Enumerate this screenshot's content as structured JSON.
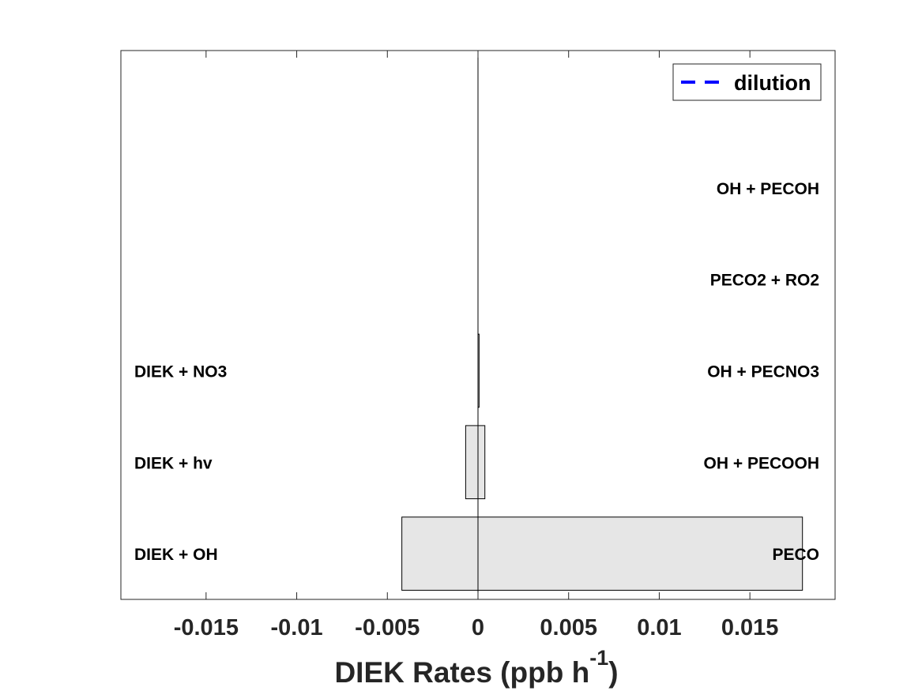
{
  "chart_data": {
    "type": "bar",
    "orientation": "horizontal",
    "stacked": true,
    "xlabel": "DIEK Rates (ppb h",
    "xlabel_superscript": "-1",
    "xlabel_suffix": ")",
    "xlim": [
      -0.0197,
      0.0197
    ],
    "xticks": [
      -0.015,
      -0.01,
      -0.005,
      0,
      0.005,
      0.01,
      0.015
    ],
    "xtick_labels": [
      "-0.015",
      "-0.01",
      "-0.005",
      "0",
      "0.005",
      "0.01",
      "0.015"
    ],
    "ylim": [
      0.5,
      6.5
    ],
    "levels": [
      1,
      2,
      3,
      4,
      5,
      6
    ],
    "loss_labels": [
      "DIEK + OH",
      "DIEK + hv",
      "DIEK + NO3"
    ],
    "production_labels": [
      "PECO",
      "OH + PECOOH",
      "OH + PECNO3",
      "PECO2 + RO2",
      "OH + PECOH"
    ],
    "bars": [
      {
        "level": 1,
        "min": -0.0042,
        "max": 0.0179
      },
      {
        "level": 2,
        "min": -0.00068,
        "max": 0.00038
      },
      {
        "level": 3,
        "min": 0.0,
        "max": 6e-05
      }
    ],
    "bar_color": "#e6e6e6",
    "legend": {
      "entries": [
        {
          "name": "dilution",
          "style": "dashed",
          "color": "#0000ff"
        }
      ],
      "position": "top-right"
    },
    "grid": false
  }
}
